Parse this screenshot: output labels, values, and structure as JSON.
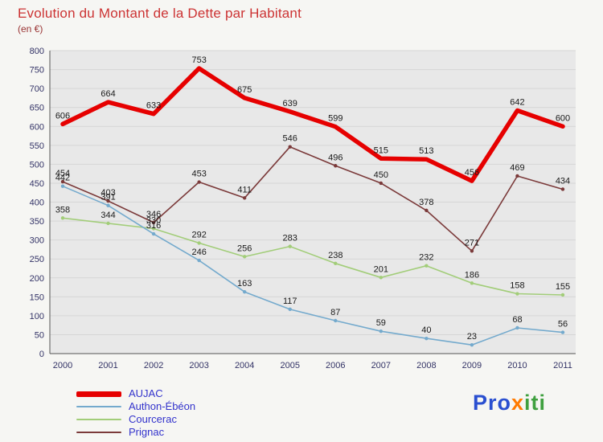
{
  "header": {
    "title": "Evolution du Montant de la Dette par Habitant",
    "subtitle": "(en €)"
  },
  "chart_data": {
    "type": "line",
    "categories": [
      "2000",
      "2001",
      "2002",
      "2003",
      "2004",
      "2005",
      "2006",
      "2007",
      "2008",
      "2009",
      "2010",
      "2011"
    ],
    "series": [
      {
        "name": "AUJAC",
        "color": "#e60000",
        "thick": true,
        "values": [
          606,
          664,
          633,
          753,
          675,
          639,
          599,
          515,
          513,
          456,
          642,
          600
        ]
      },
      {
        "name": "Authon-Ébéon",
        "color": "#74aacd",
        "thick": false,
        "values": [
          442,
          391,
          316,
          246,
          163,
          117,
          87,
          59,
          40,
          23,
          68,
          56
        ]
      },
      {
        "name": "Courcerac",
        "color": "#a2cd79",
        "thick": false,
        "values": [
          358,
          344,
          330,
          292,
          256,
          283,
          238,
          201,
          232,
          186,
          158,
          155
        ]
      },
      {
        "name": "Prignac",
        "color": "#7b3a3a",
        "thick": false,
        "values": [
          454,
          403,
          346,
          453,
          411,
          546,
          496,
          450,
          378,
          271,
          469,
          434
        ]
      }
    ],
    "title": "Evolution du Montant de la Dette par Habitant",
    "xlabel": "",
    "ylabel": "en €",
    "ylim": [
      0,
      800
    ],
    "ytick_step": 50,
    "grid": true,
    "legend_position": "bottom-left",
    "plot_bg": "#e8e8e8",
    "grid_color": "#d6d6d6",
    "axis_color": "#555555",
    "tick_label_color": "#333366",
    "data_label_color": "#1a1a1a"
  },
  "logo": {
    "parts": [
      {
        "text": "Pro",
        "color": "#2a4fd0"
      },
      {
        "text": "x",
        "color": "#ff7a00"
      },
      {
        "text": "iti",
        "color": "#3fa03f"
      }
    ]
  }
}
